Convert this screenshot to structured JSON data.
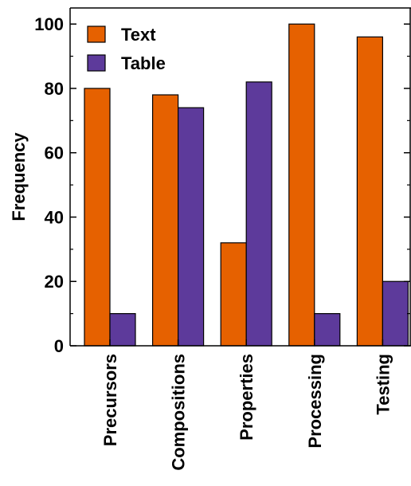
{
  "chart_data": {
    "type": "bar",
    "categories": [
      "Precursors",
      "Compositions",
      "Properties",
      "Processing",
      "Testing"
    ],
    "series": [
      {
        "name": "Text",
        "values": [
          80,
          78,
          32,
          100,
          96
        ],
        "color": "#e66100"
      },
      {
        "name": "Table",
        "values": [
          10,
          74,
          82,
          10,
          20
        ],
        "color": "#5d3a9b"
      }
    ],
    "ylabel": "Frequency",
    "xlabel": "",
    "ylim": [
      0,
      105
    ],
    "yticks": [
      0,
      20,
      40,
      60,
      80,
      100
    ],
    "legend_position": "top-left",
    "grid": false
  }
}
